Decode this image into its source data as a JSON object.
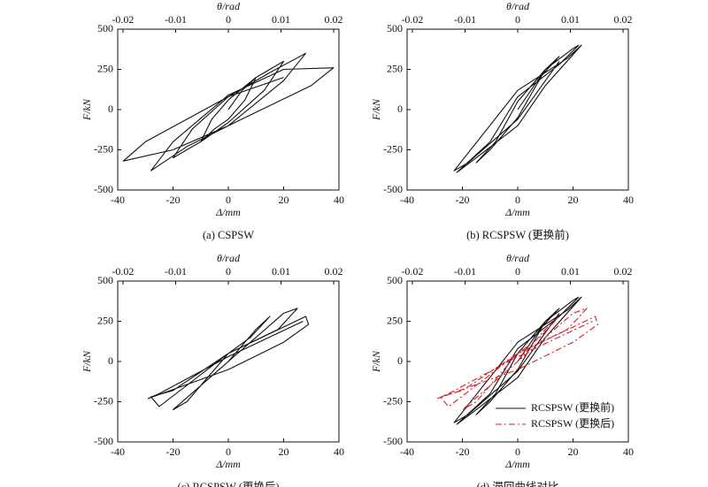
{
  "chart_data": [
    {
      "type": "line",
      "xlabel": "Δ/mm",
      "ylabel": "F/kN",
      "x2label": "θ/rad",
      "caption": "(a) CSPSW",
      "xlim": [
        -40,
        40
      ],
      "xticks": [
        -40,
        -20,
        0,
        20,
        40
      ],
      "ylim": [
        -500,
        500
      ],
      "yticks": [
        -500,
        -250,
        0,
        250,
        500
      ],
      "x2lim": [
        -0.021,
        0.021
      ],
      "x2ticks": [
        -0.02,
        -0.01,
        0,
        0.01,
        0.02
      ],
      "series": [
        {
          "color": "#111111",
          "dash": "solid",
          "x": [
            0,
            5,
            10,
            6,
            0,
            -5,
            -10,
            -6,
            0,
            5,
            10,
            20,
            13,
            0,
            -10,
            -20,
            -13,
            0,
            15,
            28,
            20,
            0,
            -15,
            -28,
            -20,
            0,
            20,
            38,
            30,
            0,
            -20,
            -38,
            -30,
            0,
            20
          ],
          "values": [
            0,
            120,
            200,
            60,
            -60,
            -120,
            -200,
            -60,
            60,
            130,
            200,
            300,
            120,
            -80,
            -200,
            -300,
            -120,
            80,
            230,
            350,
            180,
            -100,
            -230,
            -380,
            -200,
            90,
            250,
            260,
            150,
            -100,
            -250,
            -320,
            -200,
            80,
            200
          ]
        }
      ]
    },
    {
      "type": "line",
      "xlabel": "Δ/mm",
      "ylabel": "F/kN",
      "x2label": "θ/rad",
      "caption": "(b) RCSPSW (更换前)",
      "xlim": [
        -40,
        40
      ],
      "xticks": [
        -40,
        -20,
        0,
        20,
        40
      ],
      "ylim": [
        -500,
        500
      ],
      "yticks": [
        -500,
        -250,
        0,
        250,
        500
      ],
      "x2lim": [
        -0.021,
        0.021
      ],
      "x2ticks": [
        -0.02,
        -0.01,
        0,
        0.01,
        0.02
      ],
      "series": [
        {
          "color": "#111111",
          "dash": "solid",
          "x": [
            0,
            8,
            15,
            10,
            0,
            -8,
            -15,
            -10,
            0,
            10,
            20,
            22,
            15,
            0,
            -10,
            -22,
            -15,
            0,
            10,
            23,
            18,
            0,
            -23,
            -18,
            0,
            15
          ],
          "values": [
            0,
            200,
            330,
            250,
            50,
            -200,
            -330,
            -250,
            -50,
            250,
            380,
            400,
            280,
            80,
            -200,
            -390,
            -300,
            -100,
            150,
            400,
            320,
            120,
            -380,
            -330,
            -60,
            300
          ]
        }
      ]
    },
    {
      "type": "line",
      "xlabel": "Δ/mm",
      "ylabel": "F/kN",
      "x2label": "θ/rad",
      "caption": "(c) RCSPSW (更换后)",
      "xlim": [
        -40,
        40
      ],
      "xticks": [
        -40,
        -20,
        0,
        20,
        40
      ],
      "ylim": [
        -500,
        500
      ],
      "yticks": [
        -500,
        -250,
        0,
        250,
        500
      ],
      "x2lim": [
        -0.021,
        0.021
      ],
      "x2ticks": [
        -0.02,
        -0.01,
        0,
        0.01,
        0.02
      ],
      "series": [
        {
          "color": "#111111",
          "dash": "solid",
          "x": [
            0,
            10,
            15,
            8,
            0,
            -15,
            -20,
            -10,
            0,
            20,
            25,
            18,
            0,
            -25,
            -28,
            -20,
            0,
            28,
            29,
            20,
            0,
            -29,
            -25,
            0,
            27
          ],
          "values": [
            0,
            200,
            280,
            150,
            50,
            -250,
            -300,
            -150,
            0,
            300,
            330,
            200,
            50,
            -280,
            -220,
            -180,
            50,
            280,
            230,
            120,
            -50,
            -230,
            -200,
            30,
            250
          ]
        }
      ]
    },
    {
      "type": "line",
      "xlabel": "Δ/mm",
      "ylabel": "F/kN",
      "x2label": "θ/rad",
      "caption": "(d) 滞回曲线对比",
      "xlim": [
        -40,
        40
      ],
      "xticks": [
        -40,
        -20,
        0,
        20,
        40
      ],
      "ylim": [
        -500,
        500
      ],
      "yticks": [
        -500,
        -250,
        0,
        250,
        500
      ],
      "x2lim": [
        -0.021,
        0.021
      ],
      "x2ticks": [
        -0.02,
        -0.01,
        0,
        0.01,
        0.02
      ],
      "legend": "lower right",
      "series": [
        {
          "name": "RCSPSW (更换前)",
          "color": "#111111",
          "dash": "solid",
          "x": [
            0,
            8,
            15,
            10,
            0,
            -8,
            -15,
            -10,
            0,
            10,
            20,
            22,
            15,
            0,
            -10,
            -22,
            -15,
            0,
            10,
            23,
            18,
            0,
            -23,
            -18,
            0,
            15
          ],
          "values": [
            0,
            200,
            330,
            250,
            50,
            -200,
            -330,
            -250,
            -50,
            250,
            380,
            400,
            280,
            80,
            -200,
            -390,
            -300,
            -100,
            150,
            400,
            320,
            120,
            -380,
            -330,
            -60,
            300
          ]
        },
        {
          "name": "RCSPSW (更换后)",
          "color": "#d0202a",
          "dash": "dashdot",
          "x": [
            0,
            10,
            15,
            8,
            0,
            -15,
            -20,
            -10,
            0,
            20,
            25,
            18,
            0,
            -25,
            -28,
            -20,
            0,
            28,
            29,
            20,
            0,
            -29,
            -25,
            0,
            27
          ],
          "values": [
            0,
            200,
            280,
            150,
            50,
            -250,
            -300,
            -150,
            0,
            300,
            330,
            200,
            50,
            -280,
            -220,
            -180,
            50,
            280,
            230,
            120,
            -50,
            -230,
            -200,
            30,
            250
          ]
        }
      ]
    }
  ]
}
